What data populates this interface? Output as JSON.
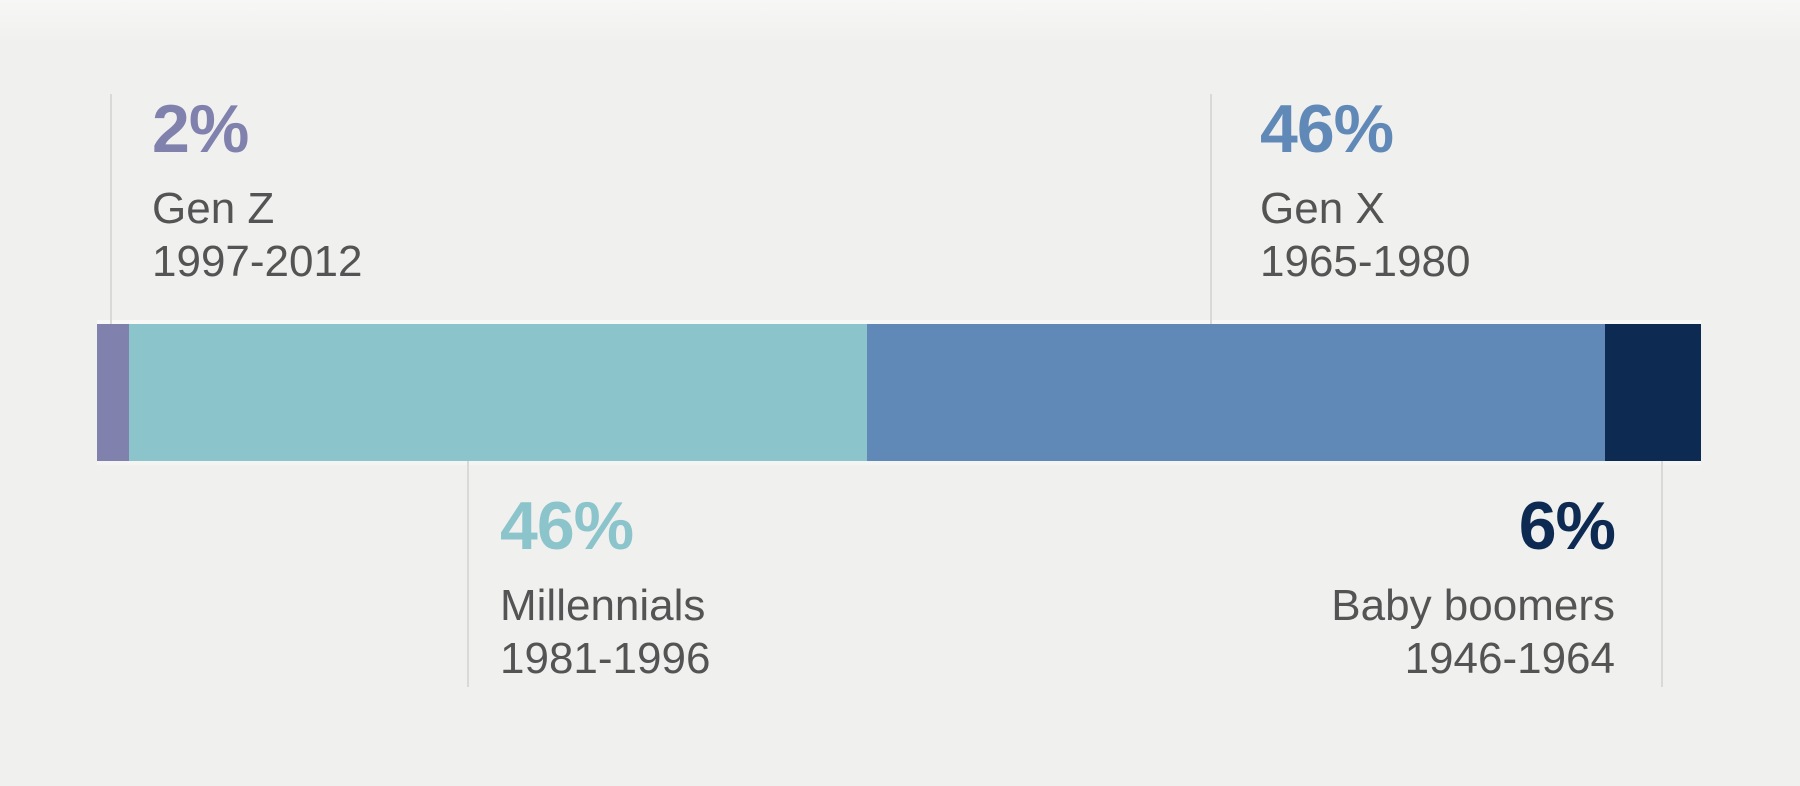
{
  "background": "#f0f0ef",
  "divider_color": "#d9d9d8",
  "label_text_color": "#545454",
  "chart_data": {
    "type": "bar",
    "subtype": "single-stacked-horizontal-bar",
    "orientation": "horizontal",
    "stacked": true,
    "unit": "%",
    "total": 100,
    "grid": false,
    "legend": "none (direct callout labels above and below bar)",
    "categories": [
      "Gen Z",
      "Millennials",
      "Gen X",
      "Baby boomers"
    ],
    "values": [
      2,
      46,
      46,
      6
    ],
    "segments": [
      {
        "name": "Gen Z",
        "years": "1997-2012",
        "value": 2,
        "pct_label": "2%",
        "color": "#8181ad",
        "callout_position": "above-left"
      },
      {
        "name": "Millennials",
        "years": "1981-1996",
        "value": 46,
        "pct_label": "46%",
        "color": "#8cc4cb",
        "callout_position": "below-left"
      },
      {
        "name": "Gen X",
        "years": "1965-1980",
        "value": 46,
        "pct_label": "46%",
        "color": "#6189b7",
        "callout_position": "above-left"
      },
      {
        "name": "Baby boomers",
        "years": "1946-1964",
        "value": 6,
        "pct_label": "6%",
        "color": "#0d2a52",
        "callout_position": "below-right"
      }
    ]
  }
}
